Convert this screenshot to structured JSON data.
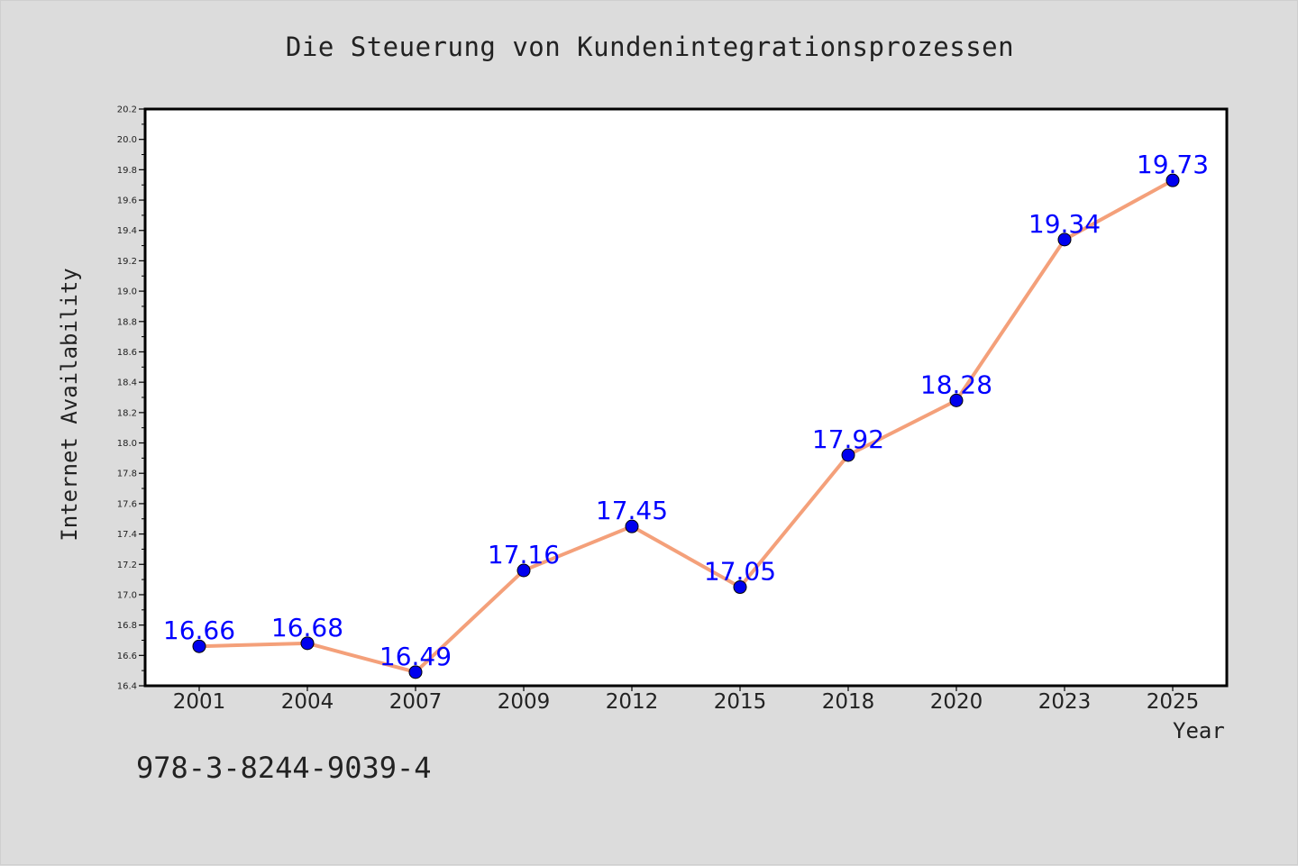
{
  "chart_data": {
    "type": "line",
    "title": "Die Steuerung von Kundenintegrationsprozessen",
    "xlabel": "Year",
    "ylabel": "Internet Availability",
    "categories": [
      "2001",
      "2004",
      "2007",
      "2009",
      "2012",
      "2015",
      "2018",
      "2020",
      "2023",
      "2025"
    ],
    "series": [
      {
        "values": [
          16.66,
          16.68,
          16.49,
          17.16,
          17.45,
          17.05,
          17.92,
          18.28,
          19.34,
          19.73
        ],
        "labels": [
          "16.66",
          "16.68",
          "16.49",
          "17.16",
          "17.45",
          "17.05",
          "17.92",
          "18.28",
          "19.34",
          "19.73"
        ],
        "line_color": "#f4a07a",
        "marker_color": "#0000ee",
        "label_color": "#0000ff"
      }
    ],
    "ylim": [
      16.4,
      20.2
    ],
    "yticks": [
      "16.4",
      "16.6",
      "16.8",
      "17.0",
      "17.2",
      "17.4",
      "17.6",
      "17.8",
      "18.0",
      "18.2",
      "18.4",
      "18.6",
      "18.8",
      "19.0",
      "19.2",
      "19.4",
      "19.6",
      "19.8",
      "20.0",
      "20.2"
    ],
    "grid": false,
    "background": "#dcdcdc",
    "plot_background": "#ffffff"
  },
  "footer": {
    "isbn": "978-3-8244-9039-4"
  }
}
